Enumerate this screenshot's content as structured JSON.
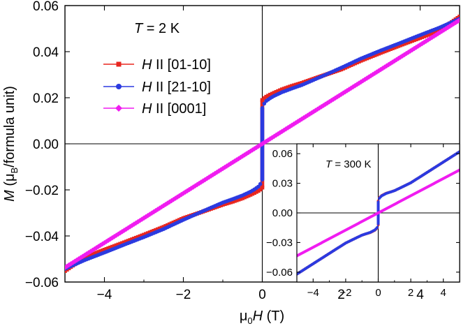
{
  "chart_data": [
    {
      "id": "main",
      "type": "line",
      "title": "",
      "xlabel": {
        "prefix": "μ",
        "sub": "0",
        "var": "H",
        "suffix": " (T)"
      },
      "ylabel": {
        "var": "M",
        "pre": " (μ",
        "sub": "B",
        "post": "/formula unit)"
      },
      "xlim": [
        -5,
        5
      ],
      "ylim": [
        -0.06,
        0.06
      ],
      "xticks": [
        -4,
        -2,
        0,
        2,
        4
      ],
      "xtick_labels": [
        "−4",
        "−2",
        "0",
        "2",
        "4"
      ],
      "yticks": [
        -0.06,
        -0.04,
        -0.02,
        0.0,
        0.02,
        0.04,
        0.06
      ],
      "ytick_labels": [
        "−0.06",
        "−0.04",
        "−0.02",
        "0.00",
        "0.02",
        "0.04",
        "0.06"
      ],
      "annotation": {
        "var": "T",
        "rest": " = 2 K"
      },
      "legend_position": "upper-left",
      "series": [
        {
          "name": "H || [01-10]",
          "label_var": "H",
          "label_rest": " II [01-10]",
          "color": "#e8261f",
          "marker": "square",
          "x": [
            0,
            0.03,
            0.1,
            0.2,
            0.3,
            0.5,
            0.75,
            1,
            1.5,
            2,
            2.5,
            3,
            3.5,
            4,
            4.5,
            5
          ],
          "up": [
            0.019,
            0.0196,
            0.0204,
            0.0213,
            0.0221,
            0.0236,
            0.0251,
            0.0264,
            0.0294,
            0.0323,
            0.0361,
            0.0395,
            0.0428,
            0.046,
            0.0493,
            0.0552
          ],
          "down_gap": [
            0,
            0,
            0,
            0,
            0,
            0,
            0,
            0,
            0,
            0,
            0,
            0,
            0,
            0,
            0,
            0
          ]
        },
        {
          "name": "H || [21-10]",
          "label_var": "H",
          "label_rest": " II [21-10]",
          "color": "#2b3ae0",
          "marker": "circle",
          "x": [
            0,
            0.03,
            0.1,
            0.2,
            0.3,
            0.5,
            0.75,
            1,
            1.5,
            2,
            2.5,
            3,
            3.5,
            4,
            4.5,
            5
          ],
          "up": [
            0.0155,
            0.017,
            0.0186,
            0.0198,
            0.0208,
            0.0224,
            0.024,
            0.0255,
            0.0292,
            0.033,
            0.037,
            0.0405,
            0.0438,
            0.0472,
            0.0505,
            0.0543
          ],
          "down_gap": [
            0,
            0,
            0,
            0,
            0,
            0,
            0,
            0,
            0,
            0,
            0,
            0,
            0,
            0,
            0,
            0
          ]
        },
        {
          "name": "H || [0001]",
          "label_var": "H",
          "label_rest": " II [0001]",
          "color": "#f01cf0",
          "marker": "diamond",
          "x": [
            0,
            5
          ],
          "up": [
            0,
            0.0537
          ],
          "down_gap": [
            0,
            0
          ]
        }
      ]
    },
    {
      "id": "inset",
      "type": "line",
      "title": "",
      "xlim": [
        -5,
        5
      ],
      "ylim": [
        -0.07,
        0.07
      ],
      "xticks": [
        -4,
        -2,
        0,
        2,
        4
      ],
      "xtick_labels": [
        "−4",
        "−2",
        "0",
        "2",
        "4"
      ],
      "yticks": [
        -0.06,
        -0.03,
        0.0,
        0.03,
        0.06
      ],
      "ytick_labels": [
        "−0.06",
        "−0.03",
        "0.00",
        "0.03",
        "0.06"
      ],
      "annotation": {
        "var": "T",
        "rest": " = 300 K"
      },
      "series": [
        {
          "name": "H || [01-10]",
          "color": "#e8261f",
          "x": [
            0,
            0.05,
            0.2,
            0.5,
            1,
            2,
            3,
            4,
            5
          ],
          "up": [
            0.012,
            0.015,
            0.0175,
            0.02,
            0.0225,
            0.0305,
            0.041,
            0.0515,
            0.062
          ]
        },
        {
          "name": "H || [21-10]",
          "color": "#2b3ae0",
          "x": [
            0,
            0.05,
            0.2,
            0.5,
            1,
            2,
            3,
            4,
            5
          ],
          "up": [
            0.011,
            0.0145,
            0.0172,
            0.0198,
            0.0225,
            0.0305,
            0.041,
            0.0515,
            0.062
          ]
        },
        {
          "name": "H || [0001]",
          "color": "#f01cf0",
          "x": [
            0,
            5
          ],
          "up": [
            0,
            0.0435
          ]
        }
      ]
    }
  ]
}
